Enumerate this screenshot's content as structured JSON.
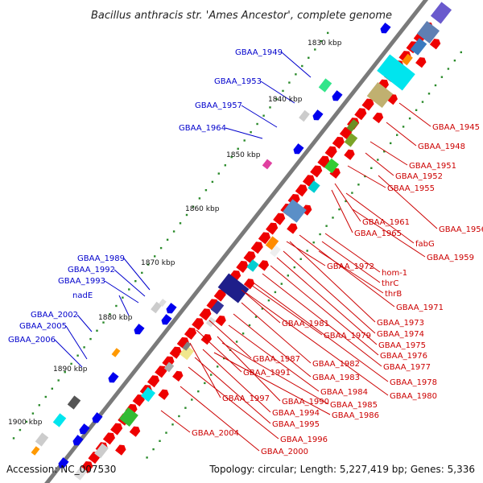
{
  "title": "Bacillus anthracis str. 'Ames Ancestor', complete genome",
  "footer": {
    "accession": "Accession: NC_007530",
    "summary": "Topology: circular; Length: 5,227,419 bp; Genes: 5,336"
  },
  "colors": {
    "backbone": "#7a7a7a",
    "forward_gene": "#0000ee",
    "reverse_gene": "#ee0000",
    "tick": "#2a8a2a",
    "blue_label": "#0000cc",
    "red_label": "#cc0000"
  },
  "scale_ticks": [
    "1830 kbp",
    "1840 kbp",
    "1850 kbp",
    "1860 kbp",
    "1870 kbp",
    "1880 kbp",
    "1890 kbp",
    "1900 kbp"
  ],
  "labels_forward": [
    "GBAA_1949",
    "GBAA_1953",
    "GBAA_1957",
    "GBAA_1964",
    "GBAA_1989",
    "GBAA_1992",
    "GBAA_1993",
    "nadE",
    "GBAA_2002",
    "GBAA_2005",
    "GBAA_2006"
  ],
  "labels_reverse": [
    "GBAA_1945",
    "GBAA_1948",
    "GBAA_1951",
    "GBAA_1952",
    "GBAA_1955",
    "GBAA_1956",
    "GBAA_1961",
    "GBAA_1965",
    "fabG",
    "GBAA_1959",
    "GBAA_1972",
    "hom-1",
    "thrC",
    "thrB",
    "GBAA_1971",
    "GBAA_1973",
    "GBAA_1981",
    "GBAA_1974",
    "GBAA_1979",
    "GBAA_1975",
    "GBAA_1976",
    "GBAA_1987",
    "GBAA_1982",
    "GBAA_1977",
    "GBAA_1991",
    "GBAA_1983",
    "GBAA_1978",
    "GBAA_1984",
    "GBAA_1980",
    "GBAA_1997",
    "GBAA_1990",
    "GBAA_1985",
    "GBAA_1994",
    "GBAA_1986",
    "GBAA_1995",
    "GBAA_1996",
    "GBAA_2004",
    "GBAA_2000"
  ]
}
